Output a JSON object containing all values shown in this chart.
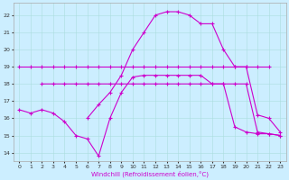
{
  "xlabel": "Windchill (Refroidissement éolien,°C)",
  "background_color": "#cceeff",
  "line_color": "#cc00cc",
  "xlim": [
    -0.5,
    23.5
  ],
  "ylim": [
    13.5,
    22.7
  ],
  "xticks": [
    0,
    1,
    2,
    3,
    4,
    5,
    6,
    7,
    8,
    9,
    10,
    11,
    12,
    13,
    14,
    15,
    16,
    17,
    18,
    19,
    20,
    21,
    22,
    23
  ],
  "yticks": [
    14,
    15,
    16,
    17,
    18,
    19,
    20,
    21,
    22
  ],
  "line1_x": [
    0,
    1,
    2,
    3,
    4,
    5,
    6,
    7,
    8,
    9,
    10,
    11,
    12,
    13,
    14,
    15,
    16,
    17,
    18,
    19,
    20,
    21,
    22
  ],
  "line1_y": [
    19,
    19,
    19,
    19,
    19,
    19,
    19,
    19,
    19,
    19,
    19,
    19,
    19,
    19,
    19,
    19,
    19,
    19,
    19,
    19,
    19,
    19,
    19
  ],
  "line2_x": [
    2,
    3,
    4,
    5,
    6,
    7,
    8,
    9,
    10,
    11,
    12,
    13,
    14,
    15,
    16,
    17,
    18,
    19,
    20,
    21,
    22,
    23
  ],
  "line2_y": [
    18,
    18,
    18,
    18,
    18,
    18,
    18,
    18,
    18,
    18,
    18,
    18,
    18,
    18,
    18,
    18,
    18,
    18,
    18,
    15.2,
    15.1,
    15.0
  ],
  "line3_x": [
    0,
    1,
    2,
    3,
    4,
    5,
    6,
    7,
    8,
    9,
    10,
    11,
    12,
    13,
    14,
    15,
    16,
    17,
    18,
    19,
    20,
    21,
    22,
    23
  ],
  "line3_y": [
    16.5,
    16.3,
    16.5,
    16.3,
    15.8,
    15.0,
    14.8,
    13.8,
    16.0,
    17.5,
    18.4,
    18.5,
    18.5,
    18.5,
    18.5,
    18.5,
    18.5,
    18.0,
    18.0,
    15.5,
    15.2,
    15.1,
    15.1,
    15.0
  ],
  "line4_x": [
    6,
    7,
    8,
    9,
    10,
    11,
    12,
    13,
    14,
    15,
    16,
    17,
    18,
    19,
    20,
    21,
    22,
    23
  ],
  "line4_y": [
    16.0,
    16.8,
    17.5,
    18.5,
    20.0,
    21.0,
    22.0,
    22.2,
    22.2,
    22.0,
    21.5,
    21.5,
    20.0,
    19.0,
    19.0,
    16.2,
    16.0,
    15.2
  ]
}
